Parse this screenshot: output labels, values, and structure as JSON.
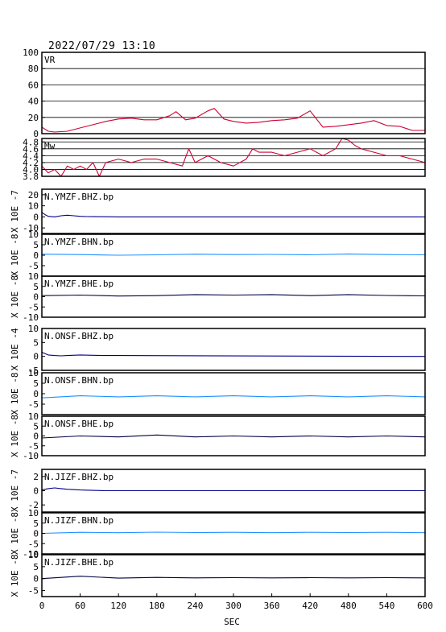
{
  "header": {
    "datetime": "2022/07/29  13:10"
  },
  "colors": {
    "frame": "#000000",
    "vr_mw": "#cc0033",
    "bhz": "#00008b",
    "bhn": "#1e90ff",
    "bhe": "#000044"
  },
  "chart_data": {
    "type": "line",
    "x_axis": {
      "label": "SEC",
      "range": [
        0,
        600
      ],
      "ticks": [
        0,
        60,
        120,
        180,
        240,
        300,
        360,
        420,
        480,
        540,
        600
      ]
    },
    "panels": [
      {
        "id": "vr",
        "title": "VR",
        "color_key": "vr_mw",
        "ylim": [
          0,
          100
        ],
        "yticks": [
          "0",
          "20",
          "40",
          "60",
          "80",
          "100"
        ],
        "ytickvals": [
          0,
          20,
          40,
          60,
          80,
          100
        ],
        "grid": true,
        "exponent_label": "",
        "x": [
          0,
          10,
          20,
          40,
          60,
          80,
          100,
          120,
          140,
          160,
          180,
          200,
          210,
          225,
          240,
          260,
          270,
          285,
          300,
          320,
          340,
          360,
          380,
          400,
          420,
          430,
          440,
          460,
          480,
          500,
          520,
          540,
          560,
          580,
          600
        ],
        "y": [
          8,
          3,
          2,
          3,
          7,
          11,
          15,
          18,
          19,
          17,
          17,
          22,
          27,
          17,
          19,
          28,
          31,
          18,
          15,
          13,
          14,
          16,
          17,
          19,
          28,
          18,
          8,
          9,
          11,
          13,
          16,
          10,
          9,
          4,
          4
        ]
      },
      {
        "id": "mw",
        "title": "Mw",
        "color_key": "vr_mw",
        "ylim": [
          3.8,
          4.9
        ],
        "yticks": [
          "3.8",
          "4.0",
          "4.2",
          "4.4",
          "4.6",
          "4.8"
        ],
        "ytickvals": [
          3.8,
          4.0,
          4.2,
          4.4,
          4.6,
          4.8
        ],
        "grid": true,
        "exponent_label": "",
        "x": [
          0,
          10,
          20,
          30,
          40,
          50,
          60,
          70,
          80,
          90,
          100,
          120,
          140,
          160,
          180,
          200,
          220,
          230,
          240,
          260,
          280,
          300,
          320,
          330,
          340,
          360,
          380,
          400,
          420,
          440,
          460,
          470,
          480,
          490,
          500,
          520,
          540,
          560,
          580,
          600
        ],
        "y": [
          4.1,
          3.9,
          4.0,
          3.8,
          4.1,
          4.0,
          4.1,
          4.0,
          4.2,
          3.8,
          4.2,
          4.3,
          4.2,
          4.3,
          4.3,
          4.2,
          4.1,
          4.6,
          4.2,
          4.4,
          4.2,
          4.1,
          4.3,
          4.6,
          4.5,
          4.5,
          4.4,
          4.5,
          4.6,
          4.4,
          4.6,
          4.9,
          4.85,
          4.7,
          4.6,
          4.5,
          4.4,
          4.4,
          4.3,
          4.2
        ]
      },
      {
        "id": "ymzf-bhz",
        "title": "N.YMZF.BHZ.bp",
        "color_key": "bhz",
        "ylim": [
          -15,
          25
        ],
        "yticks": [
          "-10",
          "0",
          "10",
          "20"
        ],
        "ytickvals": [
          -10,
          0,
          10,
          20
        ],
        "grid": false,
        "exponent_label": "X 10E -7",
        "x": [
          0,
          5,
          10,
          20,
          30,
          40,
          50,
          60,
          70,
          80,
          100,
          120,
          600
        ],
        "y": [
          4,
          2,
          0.5,
          0,
          1,
          1.5,
          1,
          0.5,
          0.3,
          0.2,
          0.1,
          0,
          0
        ]
      },
      {
        "id": "ymzf-bhn",
        "title": "N.YMZF.BHN.bp",
        "color_key": "bhn",
        "ylim": [
          -10,
          10
        ],
        "yticks": [
          "-5",
          "0",
          "5",
          "10"
        ],
        "ytickvals": [
          -5,
          0,
          5,
          10
        ],
        "grid": false,
        "exponent_label": "X 10E -8",
        "x": [
          0,
          60,
          120,
          180,
          240,
          300,
          360,
          420,
          480,
          540,
          600
        ],
        "y": [
          0.5,
          0.3,
          0,
          0.2,
          0.5,
          0.3,
          0.4,
          0.2,
          0.6,
          0.3,
          0.2
        ]
      },
      {
        "id": "ymzf-bhe",
        "title": "N.YMZF.BHE.bp",
        "color_key": "bhe",
        "ylim": [
          -10,
          10
        ],
        "yticks": [
          "-10",
          "-5",
          "0",
          "5",
          "10"
        ],
        "ytickvals": [
          -10,
          -5,
          0,
          5,
          10
        ],
        "grid": false,
        "exponent_label": "X 10E -8",
        "x": [
          0,
          60,
          120,
          180,
          240,
          300,
          360,
          420,
          480,
          540,
          600
        ],
        "y": [
          0.5,
          0.8,
          0.3,
          0.5,
          1,
          0.8,
          1,
          0.5,
          1,
          0.6,
          0.4
        ]
      },
      {
        "id": "onsf-bhz",
        "title": "N.ONSF.BHZ.bp",
        "color_key": "bhz",
        "ylim": [
          -5,
          10
        ],
        "yticks": [
          "-5",
          "0",
          "5",
          "10"
        ],
        "ytickvals": [
          -5,
          0,
          5,
          10
        ],
        "grid": false,
        "exponent_label": "X 10E -4",
        "x": [
          0,
          5,
          10,
          20,
          30,
          40,
          60,
          80,
          100,
          120,
          600
        ],
        "y": [
          1.5,
          1,
          0.5,
          0.3,
          0.2,
          0.3,
          0.5,
          0.4,
          0.3,
          0.3,
          0
        ]
      },
      {
        "id": "onsf-bhn",
        "title": "N.ONSF.BHN.bp",
        "color_key": "bhn",
        "ylim": [
          -10,
          10
        ],
        "yticks": [
          "-5",
          "0",
          "5",
          "10"
        ],
        "ytickvals": [
          -5,
          0,
          5,
          10
        ],
        "grid": false,
        "exponent_label": "X 10E -8",
        "x": [
          0,
          60,
          120,
          180,
          240,
          300,
          360,
          420,
          480,
          540,
          600
        ],
        "y": [
          -2,
          -1,
          -1.5,
          -1,
          -1.5,
          -1,
          -1.5,
          -1,
          -1.5,
          -1,
          -1.5
        ]
      },
      {
        "id": "onsf-bhe",
        "title": "N.ONSF.BHE.bp",
        "color_key": "bhe",
        "ylim": [
          -10,
          10
        ],
        "yticks": [
          "-10",
          "-5",
          "0",
          "5",
          "10"
        ],
        "ytickvals": [
          -10,
          -5,
          0,
          5,
          10
        ],
        "grid": false,
        "exponent_label": "X 10E -8",
        "x": [
          0,
          60,
          120,
          180,
          240,
          300,
          360,
          420,
          480,
          540,
          600
        ],
        "y": [
          -1,
          0,
          -0.5,
          0.5,
          -0.5,
          0,
          -0.5,
          0,
          -0.5,
          0,
          -0.5
        ]
      },
      {
        "id": "jizf-bhz",
        "title": "N.JIZF.BHZ.bp",
        "color_key": "bhz",
        "ylim": [
          -3,
          3
        ],
        "yticks": [
          "-2",
          "0",
          "2"
        ],
        "ytickvals": [
          -2,
          0,
          2
        ],
        "grid": false,
        "exponent_label": "X 10E -7",
        "x": [
          0,
          10,
          20,
          30,
          40,
          60,
          80,
          100,
          600
        ],
        "y": [
          0.1,
          0.3,
          0.4,
          0.3,
          0.2,
          0.1,
          0.05,
          0,
          0
        ]
      },
      {
        "id": "jizf-bhn",
        "title": "N.JIZF.BHN.bp",
        "color_key": "bhn",
        "ylim": [
          -10,
          10
        ],
        "yticks": [
          "-10",
          "-5",
          "0",
          "5",
          "10"
        ],
        "ytickvals": [
          -10,
          -5,
          0,
          5,
          10
        ],
        "grid": false,
        "exponent_label": "X 10E -8",
        "x": [
          0,
          60,
          120,
          180,
          240,
          300,
          360,
          420,
          480,
          540,
          600
        ],
        "y": [
          0,
          0.5,
          0.3,
          0.6,
          0.4,
          0.5,
          0.3,
          0.5,
          0.4,
          0.5,
          0.3
        ]
      },
      {
        "id": "jizf-bhe",
        "title": "N.JIZF.BHE.bp",
        "color_key": "bhe",
        "ylim": [
          -7.5,
          10
        ],
        "yticks": [
          "-5",
          "0",
          "5",
          "10"
        ],
        "ytickvals": [
          -5,
          0,
          5,
          10
        ],
        "grid": false,
        "exponent_label": "X 10E -8",
        "x": [
          0,
          60,
          120,
          180,
          240,
          300,
          360,
          420,
          480,
          540,
          600
        ],
        "y": [
          0,
          1,
          0.2,
          0.5,
          0.3,
          0.4,
          0.3,
          0.4,
          0.3,
          0.4,
          0.3
        ]
      }
    ]
  }
}
